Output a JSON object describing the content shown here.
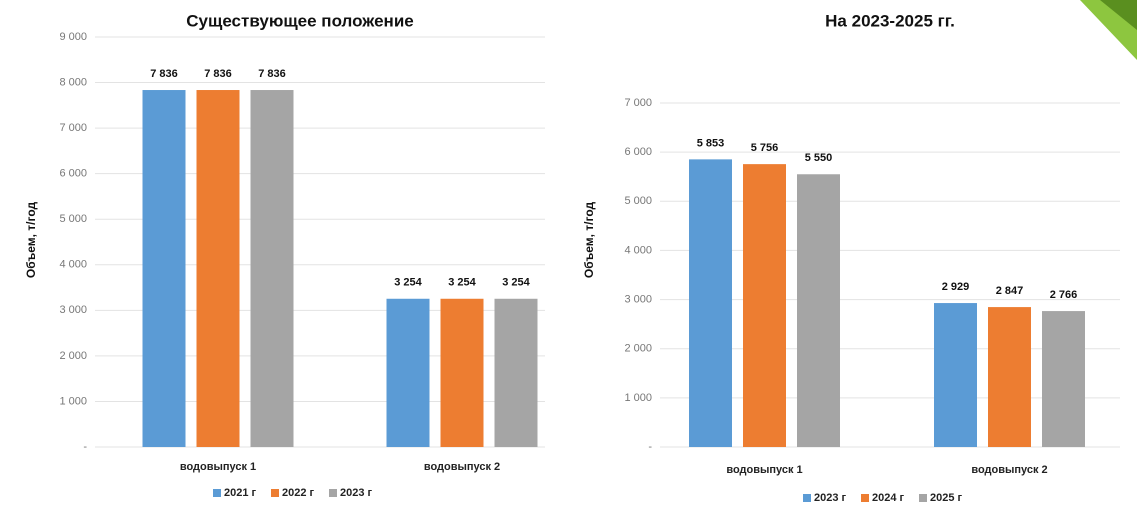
{
  "chart_data": [
    {
      "type": "bar",
      "title": "Существующее положение",
      "y_label": "Объем, т/год",
      "categories": [
        "водовыпуск 1",
        "водовыпуск 2"
      ],
      "series": [
        {
          "name": "2021 г",
          "color": "#5b9bd5",
          "values": [
            7836,
            3254
          ],
          "value_labels": [
            "7 836",
            "3 254"
          ]
        },
        {
          "name": "2022 г",
          "color": "#ed7d31",
          "values": [
            7836,
            3254
          ],
          "value_labels": [
            "7 836",
            "3 254"
          ]
        },
        {
          "name": "2023 г",
          "color": "#a5a5a5",
          "values": [
            7836,
            3254
          ],
          "value_labels": [
            "7 836",
            "3 254"
          ]
        }
      ],
      "ylim": [
        0,
        9000
      ],
      "yticks": [
        {
          "value": 0,
          "label": "-"
        },
        {
          "value": 1000,
          "label": "1 000"
        },
        {
          "value": 2000,
          "label": "2 000"
        },
        {
          "value": 3000,
          "label": "3 000"
        },
        {
          "value": 4000,
          "label": "4 000"
        },
        {
          "value": 5000,
          "label": "5 000"
        },
        {
          "value": 6000,
          "label": "6 000"
        },
        {
          "value": 7000,
          "label": "7 000"
        },
        {
          "value": 8000,
          "label": "8 000"
        },
        {
          "value": 9000,
          "label": "9 000"
        }
      ],
      "grid": true,
      "legend": "bottom"
    },
    {
      "type": "bar",
      "title": "На 2023-2025 гг.",
      "y_label": "Объем, т/год",
      "categories": [
        "водовыпуск 1",
        "водовыпуск 2"
      ],
      "series": [
        {
          "name": "2023 г",
          "color": "#5b9bd5",
          "values": [
            5853,
            2929
          ],
          "value_labels": [
            "5 853",
            "2 929"
          ]
        },
        {
          "name": "2024 г",
          "color": "#ed7d31",
          "values": [
            5756,
            2847
          ],
          "value_labels": [
            "5 756",
            "2 847"
          ]
        },
        {
          "name": "2025 г",
          "color": "#a5a5a5",
          "values": [
            5550,
            2766
          ],
          "value_labels": [
            "5 550",
            "2 766"
          ]
        }
      ],
      "ylim": [
        0,
        7000
      ],
      "yticks": [
        {
          "value": 0,
          "label": "-"
        },
        {
          "value": 1000,
          "label": "1 000"
        },
        {
          "value": 2000,
          "label": "2 000"
        },
        {
          "value": 3000,
          "label": "3 000"
        },
        {
          "value": 4000,
          "label": "4 000"
        },
        {
          "value": 5000,
          "label": "5 000"
        },
        {
          "value": 6000,
          "label": "6 000"
        },
        {
          "value": 7000,
          "label": "7 000"
        }
      ],
      "grid": true,
      "legend": "bottom"
    }
  ]
}
